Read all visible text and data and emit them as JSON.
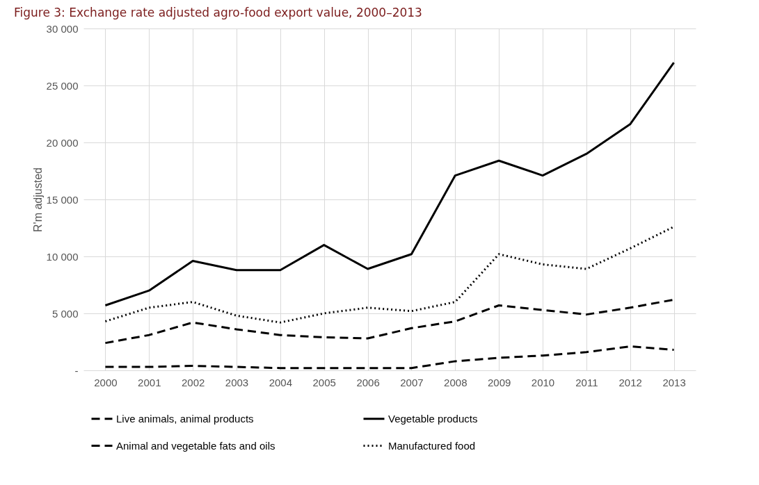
{
  "chart_data": {
    "type": "line",
    "title": "Figure 3: Exchange rate adjusted agro-food export value, 2000–2013",
    "ylabel": "R'm adjusted",
    "categories": [
      "2000",
      "2001",
      "2002",
      "2003",
      "2004",
      "2005",
      "2006",
      "2007",
      "2008",
      "2009",
      "2010",
      "2011",
      "2012",
      "2013"
    ],
    "series": [
      {
        "name": "Live animals, animal products",
        "color": "#000000",
        "line_style": "dashed",
        "values": [
          2400,
          3100,
          4200,
          3600,
          3100,
          2900,
          2800,
          3700,
          4300,
          5700,
          5300,
          4900,
          5500,
          6200
        ]
      },
      {
        "name": "Vegetable products",
        "color": "#000000",
        "line_style": "solid",
        "values": [
          5700,
          7000,
          9600,
          8800,
          8800,
          11000,
          8900,
          10200,
          17100,
          18400,
          17100,
          19000,
          21600,
          27000
        ]
      },
      {
        "name": "Animal and vegetable fats and oils",
        "color": "#000000",
        "line_style": "dashed",
        "values": [
          300,
          300,
          400,
          300,
          200,
          200,
          200,
          200,
          800,
          1100,
          1300,
          1600,
          2100,
          1800
        ]
      },
      {
        "name": "Manufactured food",
        "color": "#000000",
        "line_style": "dotted",
        "values": [
          4300,
          5500,
          6000,
          4800,
          4200,
          5000,
          5500,
          5200,
          6000,
          10200,
          9300,
          8900,
          10700,
          12600
        ]
      }
    ],
    "ylim": [
      0,
      30000
    ],
    "yticks": [
      {
        "value": 0,
        "label": "-"
      },
      {
        "value": 5000,
        "label": "5 000"
      },
      {
        "value": 10000,
        "label": "10 000"
      },
      {
        "value": 15000,
        "label": "15 000"
      },
      {
        "value": 20000,
        "label": "20 000"
      },
      {
        "value": 25000,
        "label": "25 000"
      },
      {
        "value": 30000,
        "label": "30 000"
      }
    ],
    "grid": true,
    "legend": "bottom",
    "marker": "none"
  }
}
